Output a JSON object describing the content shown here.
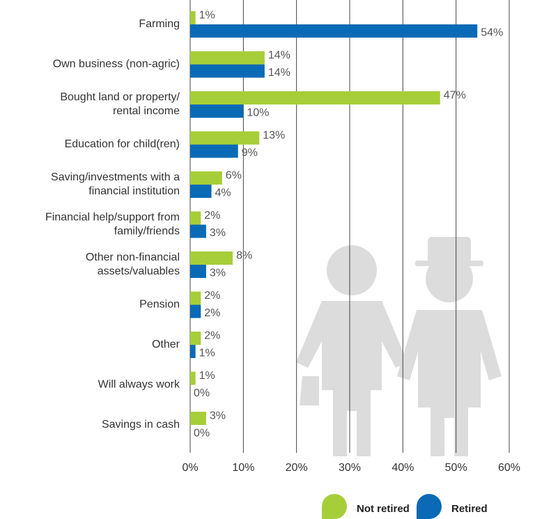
{
  "chart_data": {
    "type": "bar",
    "orientation": "horizontal",
    "categories": [
      "Farming",
      "Own business (non-agric)",
      "Bought land or property/\nrental income",
      "Education for child(ren)",
      "Saving/investments with a\nfinancial institution",
      "Financial help/support from\nfamily/friends",
      "Other non-financial\nassets/valuables",
      "Pension",
      "Other",
      "Will always work",
      "Savings in cash"
    ],
    "series": [
      {
        "name": "Not retired",
        "color": "#a6ce39",
        "values": [
          1,
          14,
          47,
          13,
          6,
          2,
          8,
          2,
          2,
          1,
          3
        ],
        "value_labels": [
          "1%",
          "14%",
          "47%",
          "13%",
          "6%",
          "2%",
          "8%",
          "2%",
          "2%",
          "1%",
          "3%"
        ]
      },
      {
        "name": "Retired",
        "color": "#0a6ab6",
        "values": [
          54,
          14,
          10,
          9,
          4,
          3,
          3,
          2,
          1,
          0,
          0
        ],
        "value_labels": [
          "54%",
          "14%",
          "10%",
          "9%",
          "4%",
          "3%",
          "3%",
          "2%",
          "1%",
          "0%",
          "0%"
        ]
      }
    ],
    "xlim": [
      0,
      60
    ],
    "xticks": [
      {
        "value": 0,
        "label": "0%"
      },
      {
        "value": 10,
        "label": "10%"
      },
      {
        "value": 20,
        "label": "20%"
      },
      {
        "value": 30,
        "label": "30%"
      },
      {
        "value": 40,
        "label": "40%"
      },
      {
        "value": 50,
        "label": "50%"
      },
      {
        "value": 60,
        "label": "60%"
      }
    ],
    "grid": true,
    "legend": "bottom-right"
  }
}
